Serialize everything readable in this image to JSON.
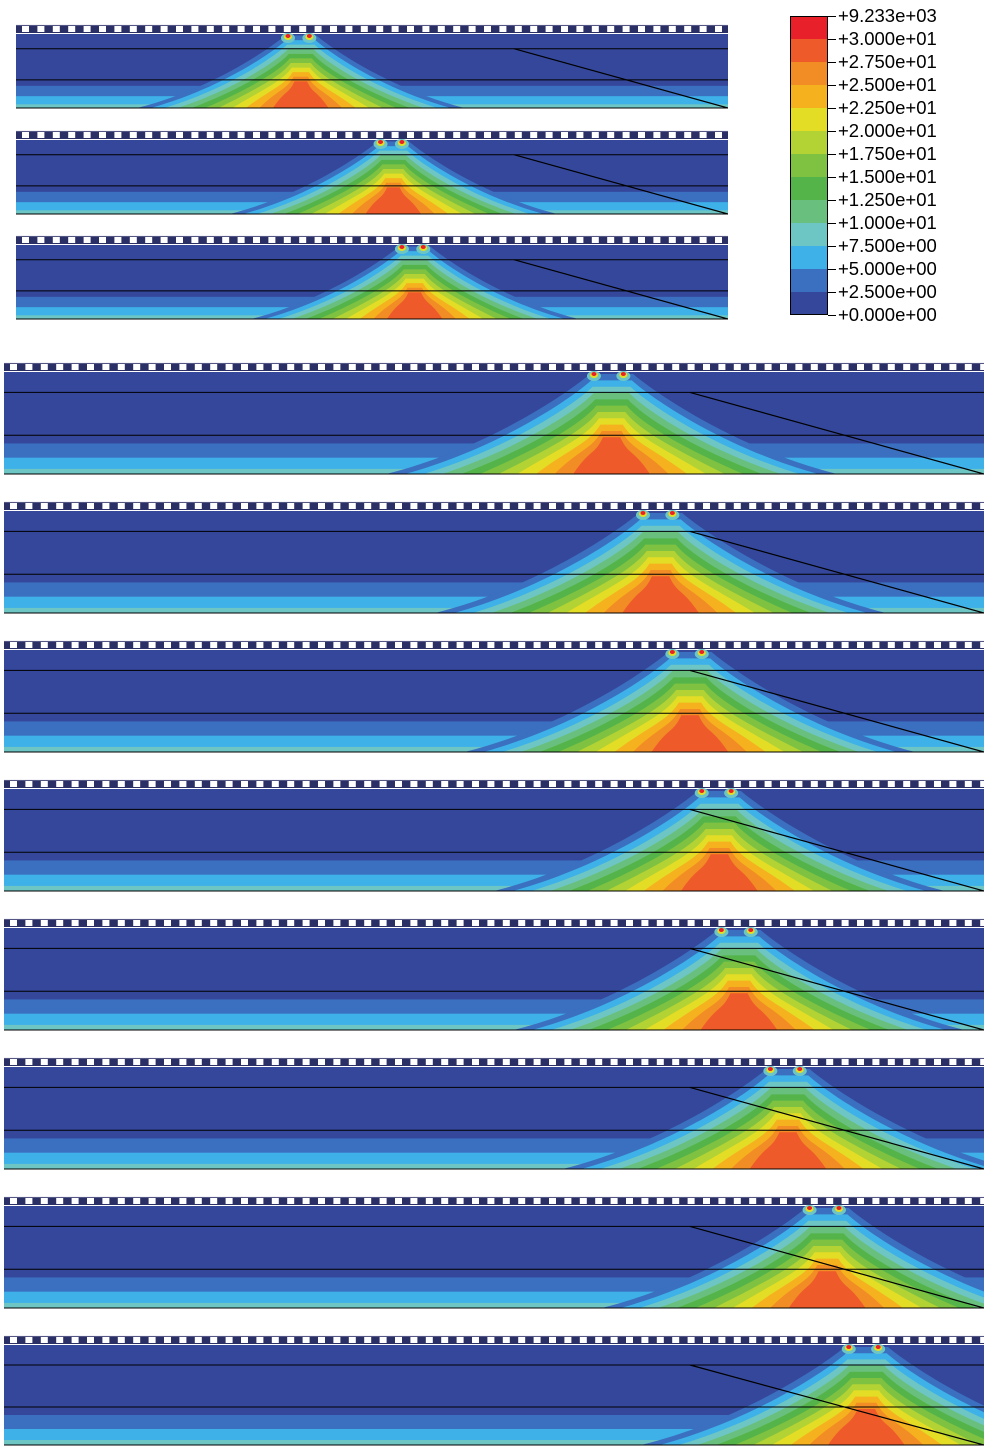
{
  "legend": {
    "labels": [
      "+9.233e+03",
      "+3.000e+01",
      "+2.750e+01",
      "+2.500e+01",
      "+2.250e+01",
      "+2.000e+01",
      "+1.750e+01",
      "+1.500e+01",
      "+1.250e+01",
      "+1.000e+01",
      "+7.500e+00",
      "+5.000e+00",
      "+2.500e+00",
      "+0.000e+00"
    ],
    "colors": [
      "#e8202a",
      "#ef5a2a",
      "#f28c25",
      "#f5b21e",
      "#e4dd26",
      "#b3d334",
      "#7fc241",
      "#55b449",
      "#69c07e",
      "#6dc6c4",
      "#3db1e8",
      "#3b6fc0",
      "#34479b"
    ]
  },
  "panels": [
    {
      "load_position": 0.4
    },
    {
      "load_position": 0.53
    },
    {
      "load_position": 0.56
    },
    {
      "load_position": 0.62
    },
    {
      "load_position": 0.67
    },
    {
      "load_position": 0.7
    },
    {
      "load_position": 0.73
    },
    {
      "load_position": 0.75
    },
    {
      "load_position": 0.8
    },
    {
      "load_position": 0.84
    },
    {
      "load_position": 0.88
    }
  ]
}
